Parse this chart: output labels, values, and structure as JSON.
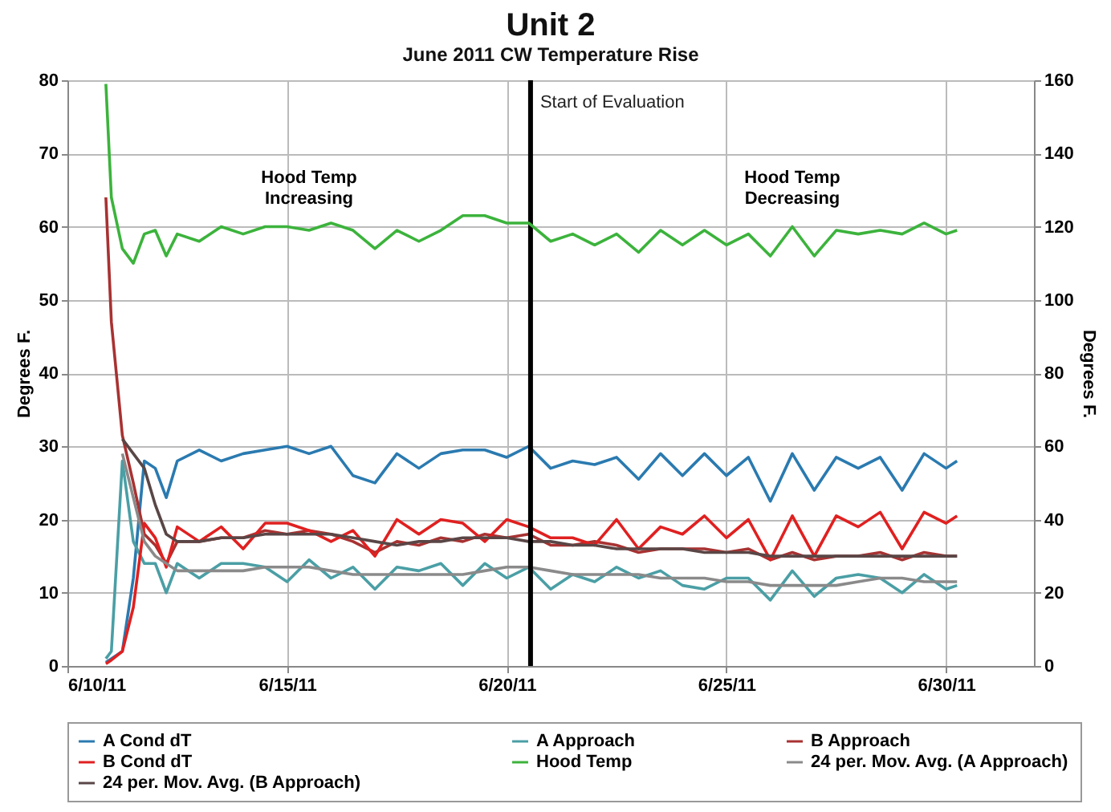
{
  "chart_data": {
    "type": "line",
    "title": "Unit 2",
    "subtitle": "June 2011 CW Temperature Rise",
    "ylabel": "Degrees F.",
    "y2label": "Degrees F.",
    "annotations": [
      "Hood Temp\nIncreasing",
      "Hood Temp\nDecreasing"
    ],
    "x": [
      "2011-06-10T21:00",
      "2011-06-11T00:00",
      "2011-06-11T06:00",
      "2011-06-11T12:00",
      "2011-06-11T18:00",
      "2011-06-12T00:00",
      "2011-06-12T06:00",
      "2011-06-12T12:00",
      "2011-06-13T00:00",
      "2011-06-13T12:00",
      "2011-06-14T00:00",
      "2011-06-14T12:00",
      "2011-06-15T00:00",
      "2011-06-15T12:00",
      "2011-06-16T00:00",
      "2011-06-16T12:00",
      "2011-06-17T00:00",
      "2011-06-17T12:00",
      "2011-06-18T00:00",
      "2011-06-18T12:00",
      "2011-06-19T00:00",
      "2011-06-19T12:00",
      "2011-06-20T00:00",
      "2011-06-20T12:00",
      "2011-06-21T00:00",
      "2011-06-21T12:00",
      "2011-06-22T00:00",
      "2011-06-22T12:00",
      "2011-06-23T00:00",
      "2011-06-23T12:00",
      "2011-06-24T00:00",
      "2011-06-24T12:00",
      "2011-06-25T00:00",
      "2011-06-25T12:00",
      "2011-06-26T00:00",
      "2011-06-26T12:00",
      "2011-06-27T00:00",
      "2011-06-27T12:00",
      "2011-06-28T00:00",
      "2011-06-28T12:00",
      "2011-06-29T00:00",
      "2011-06-29T12:00",
      "2011-06-30T00:00",
      "2011-06-30T06:00"
    ],
    "series": [
      {
        "name": "A Cond dT",
        "color": "#2a7ab0",
        "values": [
          0.5,
          1,
          2,
          12,
          28,
          27,
          23,
          28,
          29.5,
          28,
          29,
          29.5,
          30,
          29,
          30,
          26,
          25,
          29,
          27,
          29,
          29.5,
          29.5,
          28.5,
          30,
          27,
          28,
          27.5,
          28.5,
          25.5,
          29,
          26,
          29,
          26,
          28.5,
          22.5,
          29,
          24,
          28.5,
          27,
          28.5,
          24,
          29,
          27,
          28
        ]
      },
      {
        "name": "A Approach",
        "color": "#4a9fa5",
        "values": [
          1,
          2,
          28,
          17,
          14,
          14,
          10,
          14,
          12,
          14,
          14,
          13.5,
          11.5,
          14.5,
          12,
          13.5,
          10.5,
          13.5,
          13,
          14,
          11,
          14,
          12,
          13.5,
          10.5,
          12.5,
          11.5,
          13.5,
          12,
          13,
          11,
          10.5,
          12,
          12,
          9,
          13,
          9.5,
          12,
          12.5,
          12,
          10,
          12.5,
          10.5,
          11
        ]
      },
      {
        "name": "B Approach",
        "color": "#a83232",
        "values": [
          64,
          47,
          31.5,
          25,
          18,
          16.5,
          14,
          17,
          17,
          17.5,
          17.5,
          18.5,
          18,
          18.5,
          18,
          17,
          15.5,
          17,
          16.5,
          17.5,
          17,
          18,
          17.5,
          18,
          16.5,
          16.5,
          17,
          16.5,
          15.5,
          16,
          16,
          16,
          15.5,
          16,
          14.5,
          15.5,
          14.5,
          15,
          15,
          15.5,
          14.5,
          15.5,
          15,
          15
        ]
      },
      {
        "name": "B Cond dT",
        "color": "#e02020",
        "values": [
          0.3,
          0.8,
          2,
          8,
          19.5,
          17.5,
          13.5,
          19,
          17,
          19,
          16,
          19.5,
          19.5,
          18.5,
          17,
          18.5,
          15,
          20,
          18,
          20,
          19.5,
          17,
          20,
          19,
          17.5,
          17.5,
          16.5,
          20,
          16,
          19,
          18,
          20.5,
          17.5,
          20,
          14.5,
          20.5,
          15,
          20.5,
          19,
          21,
          16,
          21,
          19.5,
          20.5
        ]
      },
      {
        "name": "Hood Temp",
        "color": "#3cb33c",
        "axis": "y2",
        "values": [
          159,
          128,
          114,
          110,
          118,
          119,
          112,
          118,
          116,
          120,
          118,
          120,
          120,
          119,
          121,
          119,
          114,
          119,
          116,
          119,
          123,
          123,
          121,
          121,
          116,
          118,
          115,
          118,
          113,
          119,
          115,
          119,
          115,
          118,
          112,
          120,
          112,
          119,
          118,
          119,
          118,
          121,
          118,
          119
        ]
      },
      {
        "name": "24 per. Mov. Avg. (A Approach)",
        "color": "#8a8a8a",
        "values": [
          null,
          null,
          29,
          23,
          17,
          15,
          14,
          13,
          13,
          13,
          13,
          13.5,
          13.5,
          13.5,
          13,
          12.5,
          12.5,
          12.5,
          12.5,
          12.5,
          12.5,
          13,
          13.5,
          13.5,
          13,
          12.5,
          12.5,
          12.5,
          12.5,
          12,
          12,
          12,
          11.5,
          11.5,
          11,
          11,
          11,
          11,
          11.5,
          12,
          12,
          11.5,
          11.5,
          11.5
        ]
      },
      {
        "name": "24 per. Mov. Avg. (B Approach)",
        "color": "#5a4646",
        "values": [
          null,
          null,
          31,
          29,
          27,
          22,
          18,
          17,
          17,
          17.5,
          17.5,
          18,
          18,
          18,
          18,
          17.5,
          17,
          16.5,
          17,
          17,
          17.5,
          17.5,
          17.5,
          17,
          17,
          16.5,
          16.5,
          16,
          16,
          16,
          16,
          15.5,
          15.5,
          15.5,
          15,
          15,
          15,
          15,
          15,
          15,
          15,
          15,
          15,
          15
        ]
      }
    ],
    "xlim": [
      "2011-06-10",
      "2011-07-02"
    ],
    "xticks": [
      {
        "value": "2011-06-10",
        "label": "6/10/11"
      },
      {
        "value": "2011-06-15",
        "label": "6/15/11"
      },
      {
        "value": "2011-06-20",
        "label": "6/20/11"
      },
      {
        "value": "2011-06-25",
        "label": "6/25/11"
      },
      {
        "value": "2011-06-30",
        "label": "6/30/11"
      }
    ],
    "ylim": [
      0,
      80
    ],
    "yticks": [
      0,
      10,
      20,
      30,
      40,
      50,
      60,
      70,
      80
    ],
    "y2lim": [
      0,
      160
    ],
    "y2ticks": [
      0,
      20,
      40,
      60,
      80,
      100,
      120,
      140,
      160
    ],
    "ref_lines": [
      {
        "axis": "x",
        "value": "2011-06-20T13:00",
        "label": "Start of Evaluation",
        "color": "#000000"
      }
    ],
    "grid": true,
    "legend": "bottom"
  }
}
